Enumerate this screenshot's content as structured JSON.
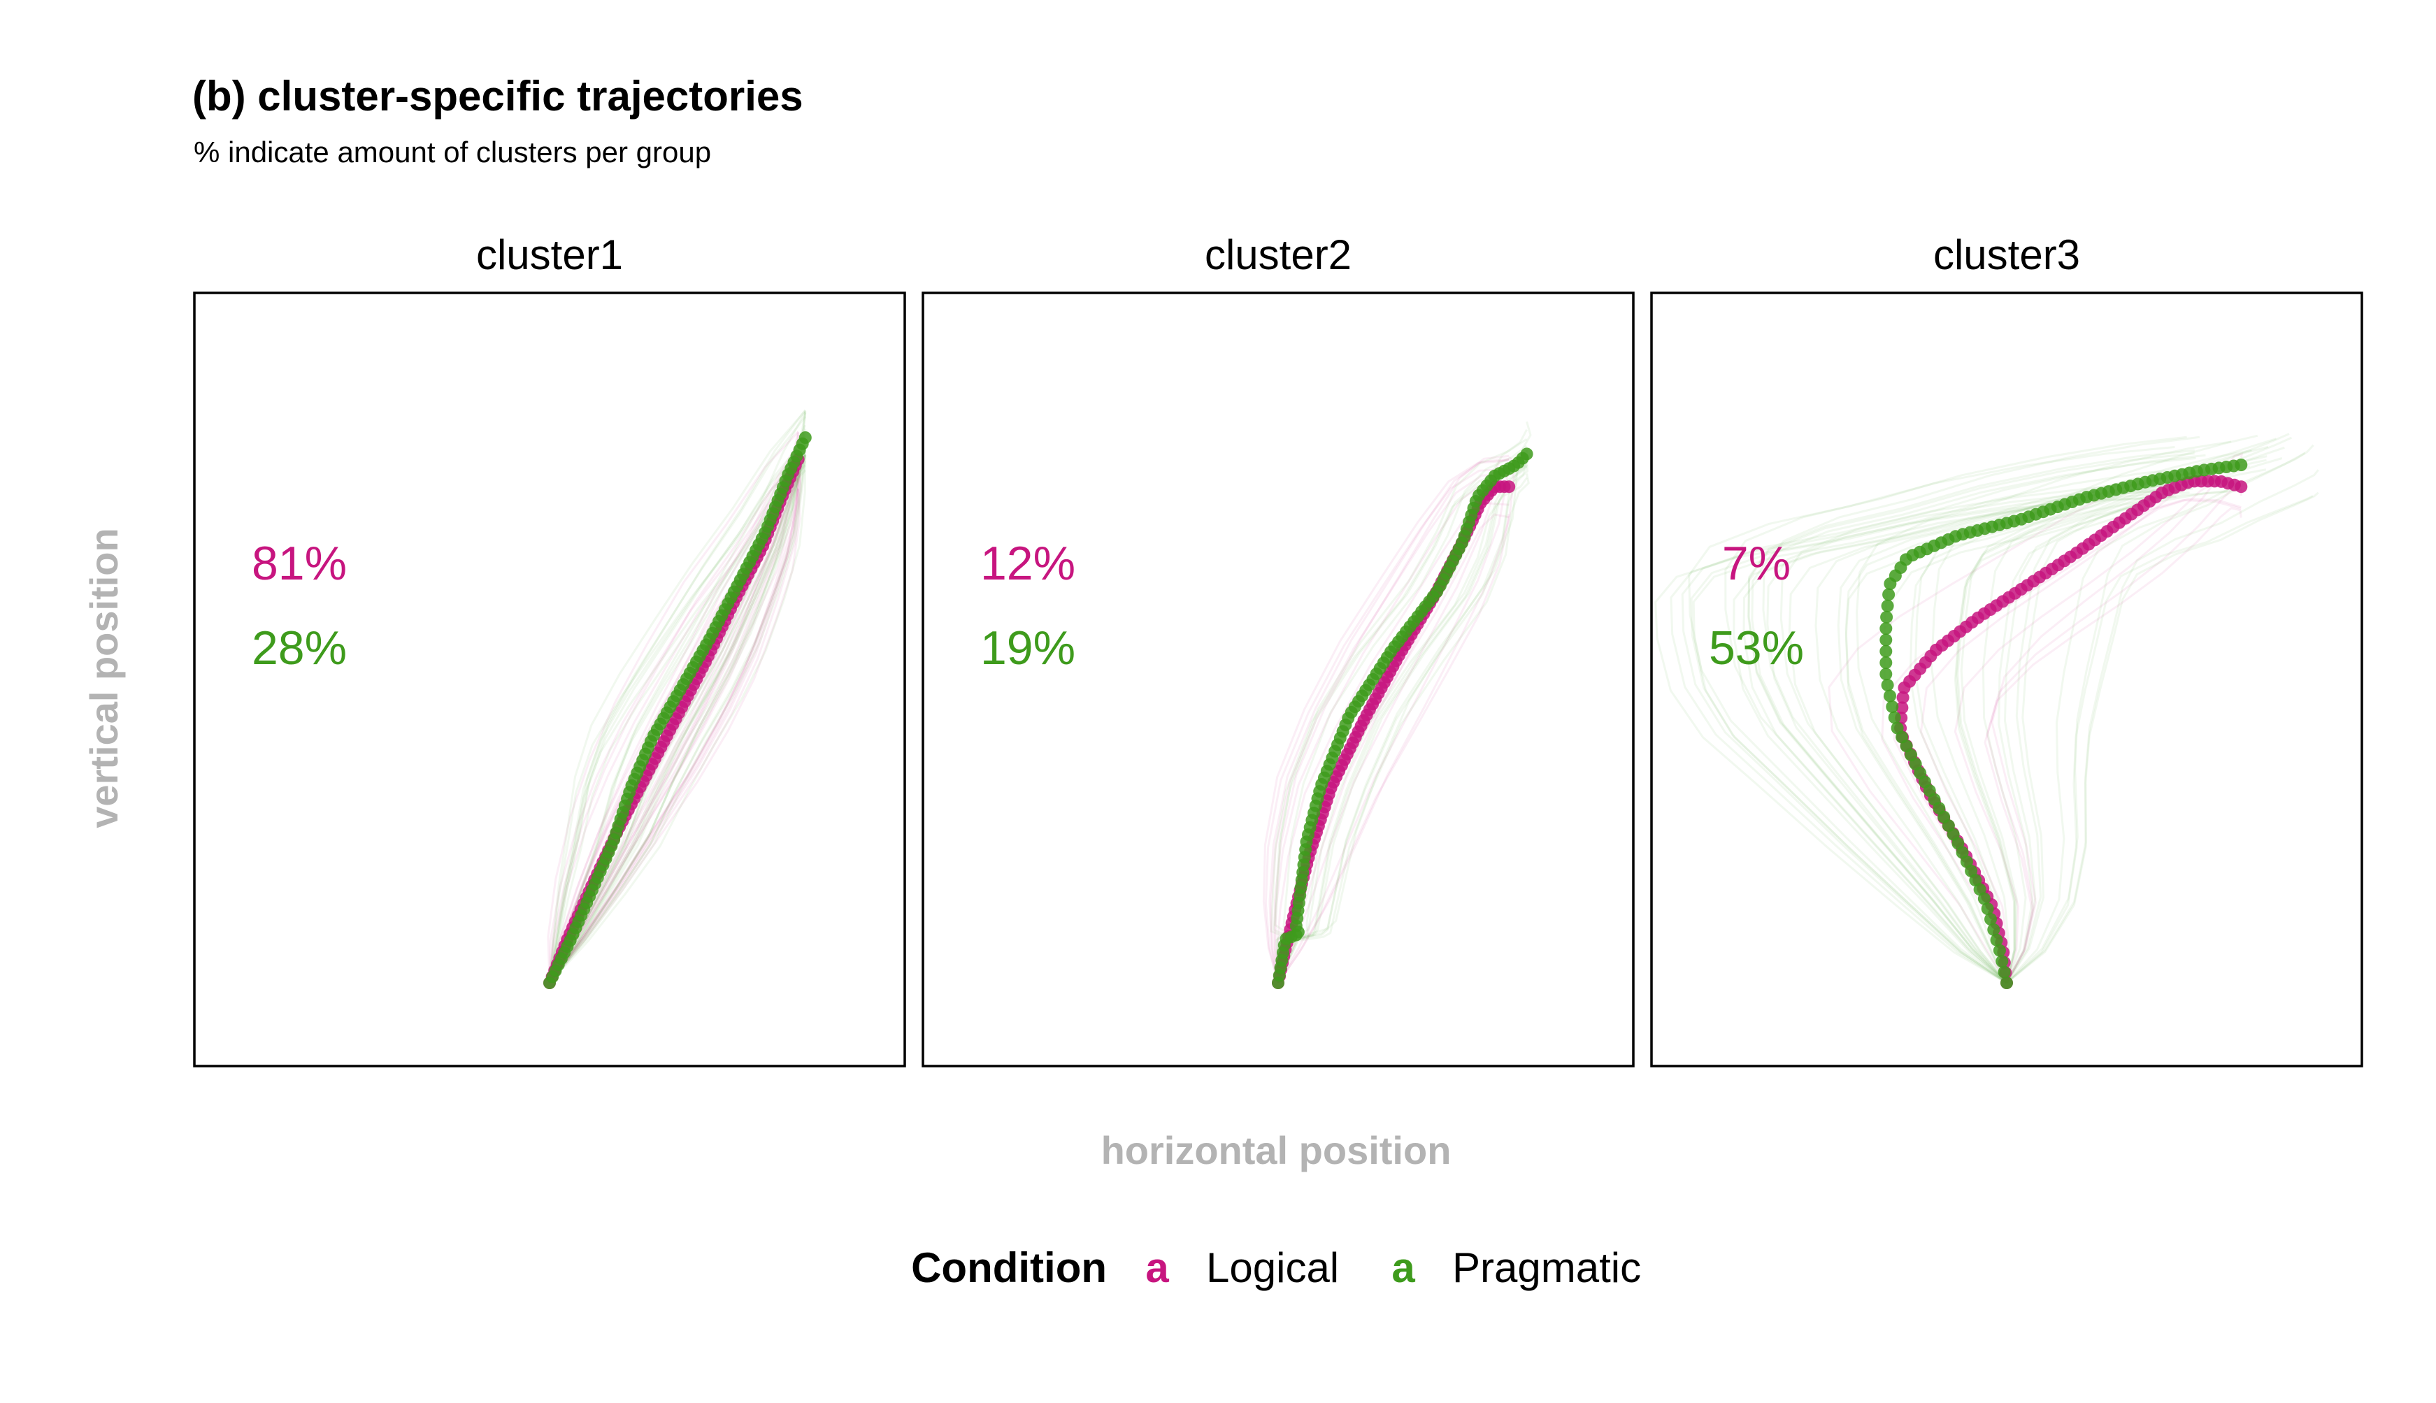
{
  "chart_data": {
    "type": "line",
    "title": "(b) cluster-specific trajectories",
    "subtitle": "% indicate amount of clusters per group",
    "xlabel": "horizontal position",
    "ylabel": "vertical position",
    "xlim": [
      -1,
      1
    ],
    "ylim": [
      0,
      1.15
    ],
    "grid": false,
    "legend": {
      "title": "Condition",
      "position": "bottom",
      "glyph": "a",
      "entries": [
        {
          "label": "Logical",
          "color": "#C7157F"
        },
        {
          "label": "Pragmatic",
          "color": "#3E9B1C"
        }
      ]
    },
    "facets": [
      {
        "name": "cluster1",
        "percent_logical": "81%",
        "percent_pragmatic": "28%",
        "series": [
          {
            "name": "Logical",
            "color": "#C7157F",
            "x": [
              0.0,
              0.05,
              0.12,
              0.2,
              0.28,
              0.36,
              0.44,
              0.52,
              0.6,
              0.66,
              0.7
            ],
            "y": [
              0.0,
              0.08,
              0.18,
              0.29,
              0.39,
              0.49,
              0.59,
              0.7,
              0.8,
              0.9,
              0.96
            ]
          },
          {
            "name": "Pragmatic",
            "color": "#3E9B1C",
            "x": [
              0.0,
              0.06,
              0.12,
              0.18,
              0.23,
              0.29,
              0.37,
              0.45,
              0.53,
              0.61,
              0.67,
              0.72
            ],
            "y": [
              0.0,
              0.08,
              0.17,
              0.26,
              0.36,
              0.45,
              0.54,
              0.63,
              0.73,
              0.83,
              0.93,
              1.0
            ]
          }
        ]
      },
      {
        "name": "cluster2",
        "percent_logical": "12%",
        "percent_pragmatic": "19%",
        "series": [
          {
            "name": "Logical",
            "color": "#C7157F",
            "x": [
              0.0,
              0.02,
              0.05,
              0.09,
              0.15,
              0.24,
              0.34,
              0.44,
              0.52,
              0.57,
              0.61,
              0.65
            ],
            "y": [
              0.0,
              0.06,
              0.14,
              0.24,
              0.36,
              0.48,
              0.6,
              0.71,
              0.81,
              0.88,
              0.91,
              0.91
            ]
          },
          {
            "name": "Pragmatic",
            "color": "#3E9B1C",
            "x": [
              0.0,
              0.02,
              0.06,
              0.05,
              0.08,
              0.12,
              0.2,
              0.32,
              0.45,
              0.52,
              0.56,
              0.61,
              0.67,
              0.7
            ],
            "y": [
              0.0,
              0.08,
              0.09,
              0.1,
              0.26,
              0.36,
              0.49,
              0.61,
              0.72,
              0.81,
              0.89,
              0.93,
              0.95,
              0.97
            ]
          }
        ]
      },
      {
        "name": "cluster3",
        "percent_logical": "7%",
        "percent_pragmatic": "53%",
        "series": [
          {
            "name": "Logical",
            "color": "#C7157F",
            "x": [
              0.0,
              -0.01,
              -0.04,
              -0.12,
              -0.22,
              -0.3,
              -0.29,
              -0.2,
              -0.08,
              0.06,
              0.2,
              0.33,
              0.44,
              0.52,
              0.6,
              0.66
            ],
            "y": [
              0.0,
              0.06,
              0.14,
              0.24,
              0.35,
              0.46,
              0.54,
              0.61,
              0.67,
              0.73,
              0.79,
              0.85,
              0.9,
              0.92,
              0.92,
              0.91
            ]
          },
          {
            "name": "Pragmatic",
            "color": "#3E9B1C",
            "x": [
              0.0,
              -0.02,
              -0.06,
              -0.14,
              -0.24,
              -0.31,
              -0.34,
              -0.34,
              -0.33,
              -0.28,
              -0.14,
              0.04,
              0.22,
              0.4,
              0.55,
              0.66
            ],
            "y": [
              0.0,
              0.06,
              0.15,
              0.26,
              0.38,
              0.47,
              0.56,
              0.66,
              0.73,
              0.78,
              0.82,
              0.85,
              0.89,
              0.92,
              0.94,
              0.95
            ]
          }
        ]
      }
    ]
  }
}
